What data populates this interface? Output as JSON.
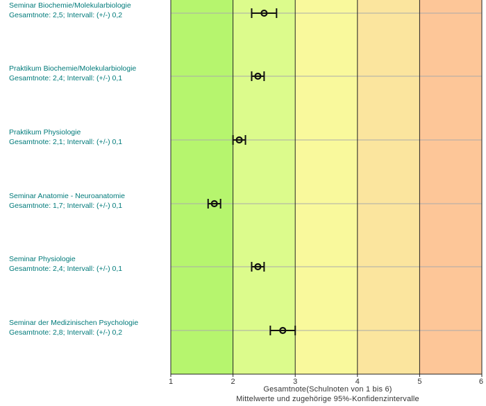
{
  "chart_data": {
    "type": "scatter",
    "orientation": "horizontal-intervals",
    "xlim": [
      1,
      6
    ],
    "x_ticks": [
      "1",
      "2",
      "3",
      "4",
      "5",
      "6"
    ],
    "xlabel": "Gesamtnote(Schulnoten von 1 bis 6)",
    "xlabel_sub": "Mittelwerte und zugehörige 95%-Konfidenzintervalle",
    "bands": [
      {
        "from": 1,
        "to": 2,
        "color": "#b6f56e"
      },
      {
        "from": 2,
        "to": 3,
        "color": "#dcfb8c"
      },
      {
        "from": 3,
        "to": 4,
        "color": "#f9f99c"
      },
      {
        "from": 4,
        "to": 5,
        "color": "#fbe59e"
      },
      {
        "from": 5,
        "to": 6,
        "color": "#fdc698"
      }
    ],
    "items": [
      {
        "name": "Seminar Biochemie/Molekularbiologie",
        "stat": "Gesamtnote: 2,5;  Intervall: (+/-) 0,2",
        "mean": 2.5,
        "ci": 0.2
      },
      {
        "name": "Praktikum Biochemie/Molekularbiologie",
        "stat": "Gesamtnote: 2,4;  Intervall: (+/-) 0,1",
        "mean": 2.4,
        "ci": 0.1
      },
      {
        "name": "Praktikum Physiologie",
        "stat": "Gesamtnote: 2,1;  Intervall: (+/-) 0,1",
        "mean": 2.1,
        "ci": 0.1
      },
      {
        "name": "Seminar Anatomie - Neuroanatomie",
        "stat": "Gesamtnote: 1,7;  Intervall: (+/-) 0,1",
        "mean": 1.7,
        "ci": 0.1
      },
      {
        "name": "Seminar Physiologie",
        "stat": "Gesamtnote: 2,4;  Intervall: (+/-) 0,1",
        "mean": 2.4,
        "ci": 0.1
      },
      {
        "name": "Seminar der Medizinischen Psychologie",
        "stat": "Gesamtnote: 2,8;  Intervall: (+/-) 0,2",
        "mean": 2.8,
        "ci": 0.2
      }
    ],
    "colors": {
      "text": "#007a7a",
      "marker": "#111111",
      "grid": "#aaaaaa",
      "border": "#222222"
    }
  }
}
